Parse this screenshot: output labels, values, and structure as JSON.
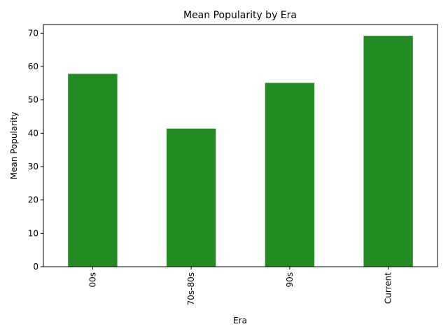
{
  "chart_data": {
    "type": "bar",
    "title": "Mean Popularity by Era",
    "xlabel": "Era",
    "ylabel": "Mean Popularity",
    "categories": [
      "00s",
      "70s-80s",
      "90s",
      "Current"
    ],
    "values": [
      57.8,
      41.4,
      55.1,
      69.2
    ],
    "ylim": [
      0,
      72.6
    ],
    "yticks": [
      0,
      10,
      20,
      30,
      40,
      50,
      60,
      70
    ],
    "bar_color": "#228b22",
    "grid": false,
    "legend": "none",
    "xtick_rotation": "vertical"
  }
}
